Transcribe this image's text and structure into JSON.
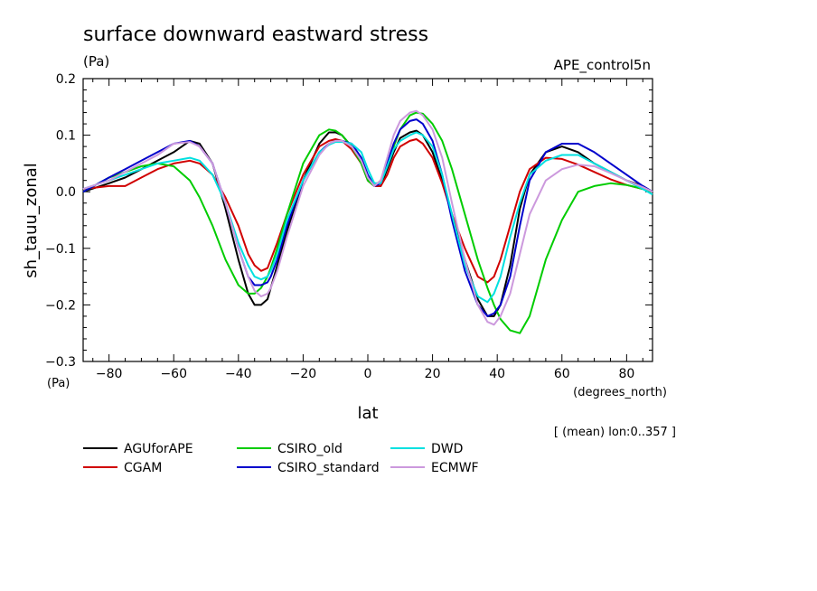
{
  "chart_data": {
    "type": "line",
    "title": "surface downward eastward stress",
    "units_top": "(Pa)",
    "experiment": "APE_control5n",
    "ylabel": "sh_tauu_zonal",
    "units_bottom": "(Pa)",
    "xlabel": "lat",
    "xunits": "(degrees_north)",
    "note": "[ (mean) lon:0..357 ]",
    "xlim": [
      -88,
      88
    ],
    "ylim": [
      -0.3,
      0.2
    ],
    "x_ticks": [
      -80,
      -60,
      -40,
      -20,
      0,
      20,
      40,
      60,
      80
    ],
    "x_tick_labels": [
      "−80",
      "−60",
      "−40",
      "−20",
      "0",
      "20",
      "40",
      "60",
      "80"
    ],
    "y_ticks": [
      0.2,
      0.1,
      0.0,
      -0.1,
      -0.2,
      -0.3
    ],
    "y_tick_labels": [
      "0.2",
      "0.1",
      "0.0",
      "−0.1",
      "−0.2",
      "−0.3"
    ],
    "x": [
      -88,
      -80,
      -75,
      -70,
      -65,
      -60,
      -55,
      -52,
      -48,
      -44,
      -40,
      -37,
      -35,
      -33,
      -31,
      -30,
      -28,
      -25,
      -20,
      -15,
      -12,
      -10,
      -8,
      -5,
      -2,
      0,
      2,
      4,
      6,
      8,
      10,
      13,
      15,
      17,
      20,
      23,
      26,
      30,
      34,
      37,
      39,
      41,
      44,
      47,
      50,
      55,
      60,
      65,
      70,
      75,
      80,
      85,
      88
    ],
    "series": [
      {
        "name": "AGUforAPE",
        "color": "#000000",
        "values": [
          0.0,
          0.015,
          0.025,
          0.04,
          0.055,
          0.07,
          0.09,
          0.085,
          0.05,
          -0.03,
          -0.12,
          -0.18,
          -0.2,
          -0.2,
          -0.19,
          -0.17,
          -0.13,
          -0.07,
          0.02,
          0.085,
          0.105,
          0.105,
          0.1,
          0.08,
          0.05,
          0.02,
          0.01,
          0.01,
          0.04,
          0.07,
          0.095,
          0.105,
          0.108,
          0.1,
          0.07,
          0.02,
          -0.04,
          -0.12,
          -0.19,
          -0.22,
          -0.22,
          -0.2,
          -0.13,
          -0.03,
          0.03,
          0.07,
          0.08,
          0.07,
          0.05,
          0.035,
          0.02,
          0.01,
          0.0
        ]
      },
      {
        "name": "CGAM",
        "color": "#d00000",
        "values": [
          0.005,
          0.01,
          0.01,
          0.025,
          0.04,
          0.05,
          0.055,
          0.05,
          0.03,
          -0.01,
          -0.06,
          -0.11,
          -0.13,
          -0.14,
          -0.135,
          -0.12,
          -0.09,
          -0.04,
          0.03,
          0.08,
          0.09,
          0.093,
          0.09,
          0.075,
          0.05,
          0.02,
          0.01,
          0.01,
          0.03,
          0.06,
          0.08,
          0.09,
          0.093,
          0.085,
          0.06,
          0.015,
          -0.04,
          -0.1,
          -0.15,
          -0.16,
          -0.15,
          -0.12,
          -0.06,
          0.0,
          0.04,
          0.06,
          0.058,
          0.048,
          0.035,
          0.022,
          0.012,
          0.005,
          0.0
        ]
      },
      {
        "name": "CSIRO_old",
        "color": "#00cc00",
        "values": [
          0.0,
          0.025,
          0.035,
          0.045,
          0.05,
          0.045,
          0.02,
          -0.01,
          -0.06,
          -0.12,
          -0.165,
          -0.18,
          -0.18,
          -0.17,
          -0.15,
          -0.135,
          -0.1,
          -0.04,
          0.05,
          0.1,
          0.11,
          0.108,
          0.1,
          0.08,
          0.05,
          0.02,
          0.01,
          0.02,
          0.05,
          0.08,
          0.11,
          0.135,
          0.14,
          0.138,
          0.12,
          0.09,
          0.04,
          -0.04,
          -0.12,
          -0.17,
          -0.2,
          -0.225,
          -0.245,
          -0.25,
          -0.22,
          -0.12,
          -0.05,
          0.0,
          0.01,
          0.015,
          0.012,
          0.005,
          0.0
        ]
      },
      {
        "name": "CSIRO_standard",
        "color": "#0000cc",
        "values": [
          0.0,
          0.025,
          0.04,
          0.055,
          0.07,
          0.085,
          0.09,
          0.08,
          0.05,
          -0.02,
          -0.1,
          -0.15,
          -0.165,
          -0.165,
          -0.16,
          -0.15,
          -0.12,
          -0.06,
          0.02,
          0.07,
          0.085,
          0.09,
          0.09,
          0.085,
          0.06,
          0.03,
          0.01,
          0.015,
          0.05,
          0.085,
          0.11,
          0.125,
          0.128,
          0.12,
          0.09,
          0.03,
          -0.05,
          -0.14,
          -0.2,
          -0.22,
          -0.215,
          -0.2,
          -0.15,
          -0.06,
          0.02,
          0.07,
          0.085,
          0.085,
          0.07,
          0.05,
          0.03,
          0.01,
          0.0
        ]
      },
      {
        "name": "DWD",
        "color": "#00e0e0",
        "values": [
          0.005,
          0.02,
          0.03,
          0.04,
          0.05,
          0.055,
          0.06,
          0.055,
          0.03,
          -0.02,
          -0.09,
          -0.13,
          -0.15,
          -0.155,
          -0.15,
          -0.14,
          -0.11,
          -0.05,
          0.02,
          0.07,
          0.083,
          0.088,
          0.088,
          0.085,
          0.07,
          0.04,
          0.015,
          0.015,
          0.045,
          0.075,
          0.09,
          0.1,
          0.105,
          0.1,
          0.08,
          0.03,
          -0.04,
          -0.13,
          -0.185,
          -0.195,
          -0.18,
          -0.15,
          -0.08,
          -0.02,
          0.03,
          0.055,
          0.065,
          0.065,
          0.05,
          0.035,
          0.02,
          0.005,
          -0.005
        ]
      },
      {
        "name": "ECMWF",
        "color": "#cc99dd",
        "values": [
          0.005,
          0.02,
          0.035,
          0.05,
          0.065,
          0.085,
          0.088,
          0.08,
          0.05,
          -0.02,
          -0.1,
          -0.15,
          -0.175,
          -0.185,
          -0.18,
          -0.17,
          -0.14,
          -0.08,
          0.01,
          0.065,
          0.085,
          0.09,
          0.09,
          0.08,
          0.055,
          0.025,
          0.01,
          0.02,
          0.06,
          0.1,
          0.125,
          0.14,
          0.143,
          0.135,
          0.11,
          0.06,
          -0.02,
          -0.12,
          -0.2,
          -0.23,
          -0.235,
          -0.22,
          -0.18,
          -0.11,
          -0.04,
          0.02,
          0.04,
          0.048,
          0.045,
          0.033,
          0.02,
          0.008,
          0.0
        ]
      }
    ],
    "legend_placement": "below-left"
  }
}
